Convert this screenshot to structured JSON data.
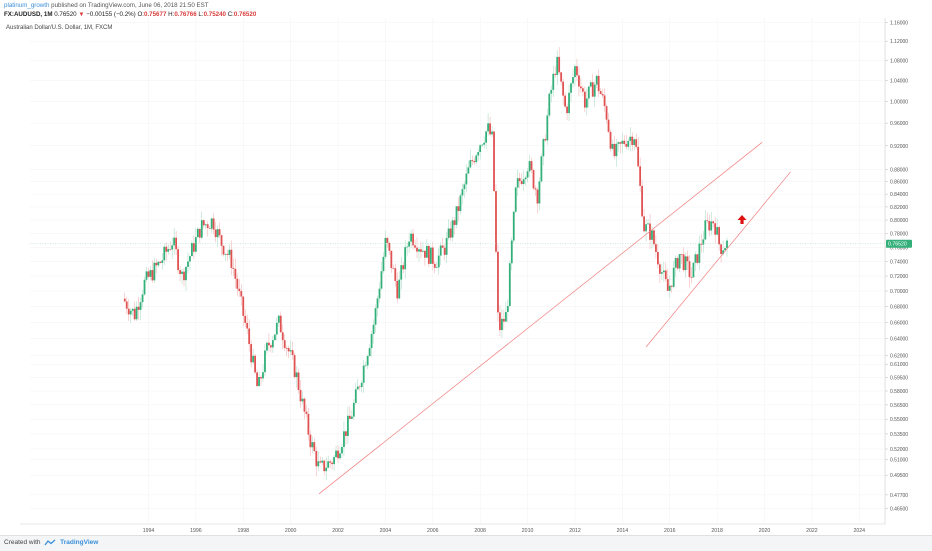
{
  "header": {
    "author": "platinum_growth",
    "published_text": "published on TradingView.com, June 06, 2018 21:50 EST",
    "symbol": "FX:AUDUSD, 1M",
    "last": "0.76520",
    "change": "−0.00155 (−0.2%)",
    "o_label": "O:",
    "o_val": "0.75677",
    "h_label": "H:",
    "h_val": "0.76766",
    "l_label": "L:",
    "l_val": "0.75240",
    "c_label": "C:",
    "c_val": "0.76520",
    "series_title": "Australian Dollar/U.S. Dollar, 1M, FXCM"
  },
  "footer": {
    "created_with": "Created with",
    "brand": "TradingView"
  },
  "colors": {
    "up": "#33b07a",
    "down": "#e05252",
    "trend": "#f08080",
    "arrow": "#e01010",
    "price_badge": "#33b07a"
  },
  "chart_data": {
    "type": "candlestick",
    "title": "Australian Dollar/U.S. Dollar, 1M, FXCM",
    "x_ticks": [
      "1994",
      "1996",
      "1998",
      "2000",
      "2002",
      "2004",
      "2006",
      "2008",
      "2010",
      "2012",
      "2014",
      "2016",
      "2018",
      "2020",
      "2022",
      "2024"
    ],
    "y_ticks": [
      "1.16000",
      "1.12000",
      "1.08000",
      "1.04000",
      "1.00000",
      "0.96000",
      "0.92000",
      "0.88000",
      "0.86000",
      "0.84000",
      "0.82000",
      "0.80000",
      "0.78000",
      "0.76000",
      "0.74000",
      "0.72000",
      "0.70000",
      "0.68000",
      "0.66000",
      "0.64000",
      "0.62000",
      "0.61000",
      "0.59500",
      "0.58000",
      "0.56500",
      "0.55000",
      "0.53500",
      "0.52000",
      "0.51000",
      "0.49500",
      "0.47700",
      "0.46500"
    ],
    "y_scale": "log",
    "ylim": [
      0.455,
      1.17
    ],
    "xlim": [
      1989.0,
      2025.0
    ],
    "current_price": "0.76520",
    "price_path": [
      [
        1993.0,
        0.69
      ],
      [
        1993.5,
        0.67
      ],
      [
        1993.9,
        0.71
      ],
      [
        1994.6,
        0.74
      ],
      [
        1995.1,
        0.77
      ],
      [
        1995.5,
        0.72
      ],
      [
        1996.3,
        0.79
      ],
      [
        1996.8,
        0.8
      ],
      [
        1997.1,
        0.77
      ],
      [
        1997.6,
        0.74
      ],
      [
        1998.3,
        0.64
      ],
      [
        1998.7,
        0.58
      ],
      [
        1999.1,
        0.63
      ],
      [
        1999.6,
        0.66
      ],
      [
        2000.3,
        0.6
      ],
      [
        2000.9,
        0.53
      ],
      [
        2001.3,
        0.5
      ],
      [
        2001.9,
        0.51
      ],
      [
        2002.6,
        0.55
      ],
      [
        2003.1,
        0.6
      ],
      [
        2003.6,
        0.66
      ],
      [
        2004.1,
        0.77
      ],
      [
        2004.6,
        0.7
      ],
      [
        2005.1,
        0.78
      ],
      [
        2005.6,
        0.76
      ],
      [
        2006.2,
        0.74
      ],
      [
        2006.6,
        0.76
      ],
      [
        2007.1,
        0.81
      ],
      [
        2007.6,
        0.88
      ],
      [
        2008.0,
        0.92
      ],
      [
        2008.4,
        0.95
      ],
      [
        2008.6,
        0.93
      ],
      [
        2008.85,
        0.65
      ],
      [
        2009.2,
        0.67
      ],
      [
        2009.6,
        0.85
      ],
      [
        2010.1,
        0.89
      ],
      [
        2010.5,
        0.84
      ],
      [
        2011.0,
        1.0
      ],
      [
        2011.3,
        1.08
      ],
      [
        2011.7,
        0.98
      ],
      [
        2012.1,
        1.07
      ],
      [
        2012.5,
        1.0
      ],
      [
        2013.0,
        1.04
      ],
      [
        2013.4,
        0.98
      ],
      [
        2013.7,
        0.9
      ],
      [
        2014.2,
        0.93
      ],
      [
        2014.6,
        0.94
      ],
      [
        2015.0,
        0.79
      ],
      [
        2015.3,
        0.78
      ],
      [
        2015.8,
        0.72
      ],
      [
        2016.0,
        0.7
      ],
      [
        2016.5,
        0.75
      ],
      [
        2017.0,
        0.72
      ],
      [
        2017.6,
        0.79
      ],
      [
        2017.95,
        0.8
      ],
      [
        2018.2,
        0.76
      ],
      [
        2018.45,
        0.765
      ]
    ],
    "trendlines": [
      {
        "from": [
          2001.2,
          0.478
        ],
        "to": [
          2019.9,
          0.926
        ]
      },
      {
        "from": [
          2015.0,
          0.63
        ],
        "to": [
          2021.1,
          0.876
        ]
      }
    ],
    "annotations": [
      {
        "type": "arrow-up",
        "x": 2019.05,
        "y": 0.8
      }
    ],
    "grid": true
  }
}
